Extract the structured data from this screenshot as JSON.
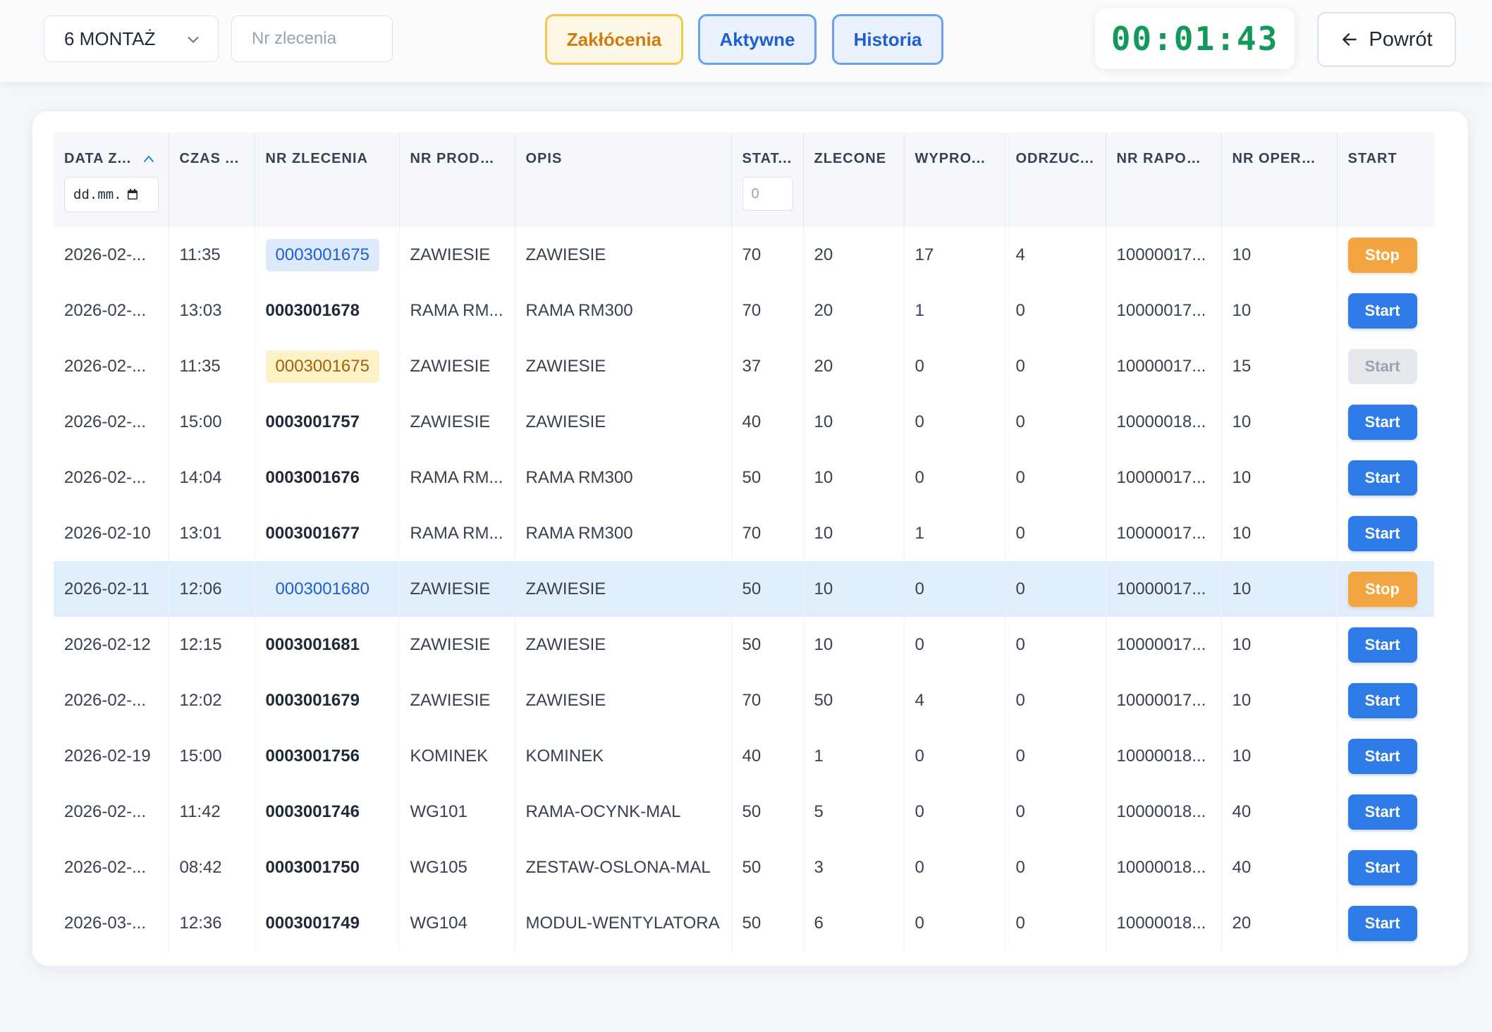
{
  "toolbar": {
    "line_select": "6 MONTAŻ",
    "order_placeholder": "Nr zlecenia",
    "disruptions_label": "Zakłócenia",
    "active_label": "Aktywne",
    "history_label": "Historia",
    "timer": "00:01:43",
    "back_label": "Powrót"
  },
  "colors": {
    "accent_blue": "#2f7be8",
    "stop_orange": "#f2a540",
    "timer_green": "#139a5a",
    "selected_row": "#e1effd"
  },
  "table": {
    "columns": [
      "DATA ZAKOŃCZENIA",
      "CZAS ZAKOŃCZENIA",
      "NR ZLECENIA",
      "NR PRODUKTU",
      "OPIS",
      "STATUS",
      "ZLECONE",
      "WYPRODUKOWANE",
      "ODRZUCONE",
      "NR RAPORTU",
      "NR OPERACJI",
      "START"
    ],
    "column_display": [
      "DATA Z...",
      "CZAS ...",
      "NR ZLECENIA",
      "NR PRODU...",
      "OPIS",
      "STAT...",
      "ZLECONE",
      "WYPRO...",
      "ODRZUC...",
      "NR RAPOR...",
      "NR OPERA...",
      "START"
    ],
    "date_filter_placeholder": "dd.mm.",
    "status_filter_placeholder": "0",
    "rows": [
      {
        "date": "2026-02-...",
        "time": "11:35",
        "order": "0003001675",
        "order_style": "blue",
        "product": "ZAWIESIE",
        "desc": "ZAWIESIE",
        "status": "70",
        "ordered": "20",
        "produced": "17",
        "rejected": "4",
        "report": "10000017...",
        "operation": "10",
        "action": "Stop",
        "action_style": "stop",
        "selected": false
      },
      {
        "date": "2026-02-...",
        "time": "13:03",
        "order": "0003001678",
        "order_style": "plain",
        "product": "RAMA RM...",
        "desc": "RAMA RM300",
        "status": "70",
        "ordered": "20",
        "produced": "1",
        "rejected": "0",
        "report": "10000017...",
        "operation": "10",
        "action": "Start",
        "action_style": "start",
        "selected": false
      },
      {
        "date": "2026-02-...",
        "time": "11:35",
        "order": "0003001675",
        "order_style": "yellow",
        "product": "ZAWIESIE",
        "desc": "ZAWIESIE",
        "status": "37",
        "ordered": "20",
        "produced": "0",
        "rejected": "0",
        "report": "10000017...",
        "operation": "15",
        "action": "Start",
        "action_style": "disabled",
        "selected": false
      },
      {
        "date": "2026-02-...",
        "time": "15:00",
        "order": "0003001757",
        "order_style": "plain",
        "product": "ZAWIESIE",
        "desc": "ZAWIESIE",
        "status": "40",
        "ordered": "10",
        "produced": "0",
        "rejected": "0",
        "report": "10000018...",
        "operation": "10",
        "action": "Start",
        "action_style": "start",
        "selected": false
      },
      {
        "date": "2026-02-...",
        "time": "14:04",
        "order": "0003001676",
        "order_style": "plain",
        "product": "RAMA RM...",
        "desc": "RAMA RM300",
        "status": "50",
        "ordered": "10",
        "produced": "0",
        "rejected": "0",
        "report": "10000017...",
        "operation": "10",
        "action": "Start",
        "action_style": "start",
        "selected": false
      },
      {
        "date": "2026-02-10",
        "time": "13:01",
        "order": "0003001677",
        "order_style": "plain",
        "product": "RAMA RM...",
        "desc": "RAMA RM300",
        "status": "70",
        "ordered": "10",
        "produced": "1",
        "rejected": "0",
        "report": "10000017...",
        "operation": "10",
        "action": "Start",
        "action_style": "start",
        "selected": false
      },
      {
        "date": "2026-02-11",
        "time": "12:06",
        "order": "0003001680",
        "order_style": "plain-blue",
        "product": "ZAWIESIE",
        "desc": "ZAWIESIE",
        "status": "50",
        "ordered": "10",
        "produced": "0",
        "rejected": "0",
        "report": "10000017...",
        "operation": "10",
        "action": "Stop",
        "action_style": "stop",
        "selected": true
      },
      {
        "date": "2026-02-12",
        "time": "12:15",
        "order": "0003001681",
        "order_style": "plain",
        "product": "ZAWIESIE",
        "desc": "ZAWIESIE",
        "status": "50",
        "ordered": "10",
        "produced": "0",
        "rejected": "0",
        "report": "10000017...",
        "operation": "10",
        "action": "Start",
        "action_style": "start",
        "selected": false
      },
      {
        "date": "2026-02-...",
        "time": "12:02",
        "order": "0003001679",
        "order_style": "plain",
        "product": "ZAWIESIE",
        "desc": "ZAWIESIE",
        "status": "70",
        "ordered": "50",
        "produced": "4",
        "rejected": "0",
        "report": "10000017...",
        "operation": "10",
        "action": "Start",
        "action_style": "start",
        "selected": false
      },
      {
        "date": "2026-02-19",
        "time": "15:00",
        "order": "0003001756",
        "order_style": "plain",
        "product": "KOMINEK",
        "desc": "KOMINEK",
        "status": "40",
        "ordered": "1",
        "produced": "0",
        "rejected": "0",
        "report": "10000018...",
        "operation": "10",
        "action": "Start",
        "action_style": "start",
        "selected": false
      },
      {
        "date": "2026-02-...",
        "time": "11:42",
        "order": "0003001746",
        "order_style": "plain",
        "product": "WG101",
        "desc": "RAMA-OCYNK-MAL",
        "status": "50",
        "ordered": "5",
        "produced": "0",
        "rejected": "0",
        "report": "10000018...",
        "operation": "40",
        "action": "Start",
        "action_style": "start",
        "selected": false
      },
      {
        "date": "2026-02-...",
        "time": "08:42",
        "order": "0003001750",
        "order_style": "plain",
        "product": "WG105",
        "desc": "ZESTAW-OSLONA-MAL",
        "status": "50",
        "ordered": "3",
        "produced": "0",
        "rejected": "0",
        "report": "10000018...",
        "operation": "40",
        "action": "Start",
        "action_style": "start",
        "selected": false
      },
      {
        "date": "2026-03-...",
        "time": "12:36",
        "order": "0003001749",
        "order_style": "plain",
        "product": "WG104",
        "desc": "MODUL-WENTYLATORA",
        "status": "50",
        "ordered": "6",
        "produced": "0",
        "rejected": "0",
        "report": "10000018...",
        "operation": "20",
        "action": "Start",
        "action_style": "start",
        "selected": false
      }
    ]
  }
}
